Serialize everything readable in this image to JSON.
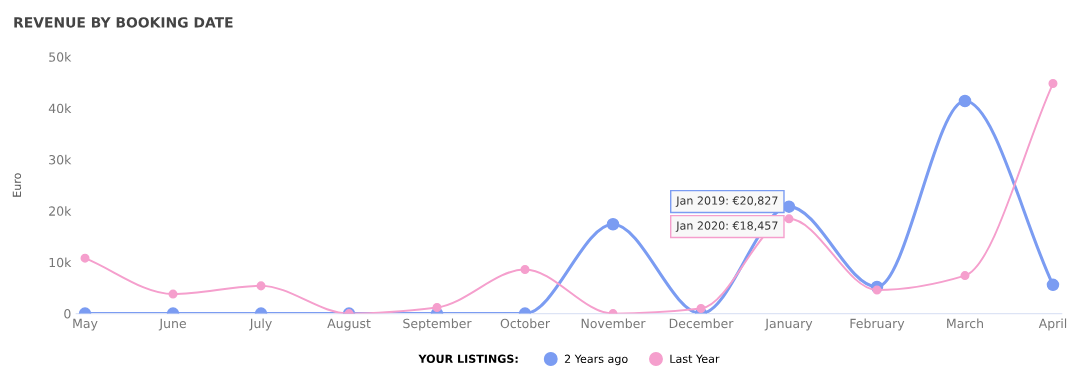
{
  "chart_data": {
    "type": "line",
    "title": "REVENUE BY BOOKING DATE",
    "ylabel": "Euro",
    "categories": [
      "May",
      "June",
      "July",
      "August",
      "September",
      "October",
      "November",
      "December",
      "January",
      "February",
      "March",
      "April"
    ],
    "series": [
      {
        "name": "2 Years ago",
        "color": "#7b9cf2",
        "values": [
          0,
          0,
          0,
          0,
          0,
          0,
          17.4,
          0,
          20.827,
          5.2,
          41.4,
          5.6
        ]
      },
      {
        "name": "Last Year",
        "color": "#f59fcd",
        "values": [
          10.8,
          3.8,
          5.4,
          0,
          1.2,
          8.6,
          0,
          1.0,
          18.457,
          4.6,
          7.4,
          44.8
        ]
      }
    ],
    "ylim": [
      0,
      50
    ],
    "yticks": [
      0,
      {
        "value": 10,
        "label": "10k"
      },
      {
        "value": 20,
        "label": "20k"
      },
      {
        "value": 30,
        "label": "30k"
      },
      {
        "value": 40,
        "label": "40k"
      },
      {
        "value": 50,
        "label": "50k"
      }
    ],
    "grid": false,
    "legend": "bottom",
    "legend_title": "YOUR LISTINGS:",
    "marker": "circle",
    "line_style": "solid",
    "annotations": [
      {
        "text": "Jan 2019: €20,827",
        "x": "January",
        "y": 20.827
      },
      {
        "text": "Jan 2020: €18,457",
        "x": "January",
        "y": 18.457
      }
    ]
  }
}
